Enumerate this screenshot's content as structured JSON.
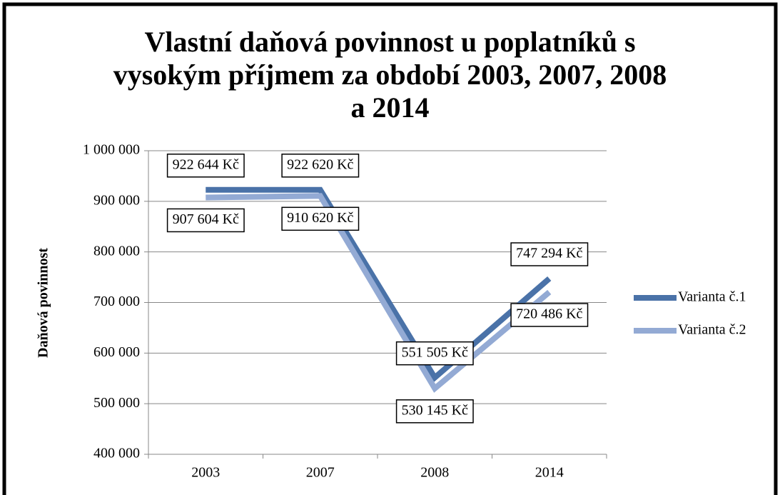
{
  "chart_data": {
    "type": "line",
    "title": "Vlastní daňová povinnost u poplatníků s vysokým příjmem za období 2003, 2007, 2008 a 2014",
    "ylabel": "Daňová povinnost",
    "categories": [
      "2003",
      "2007",
      "2008",
      "2014"
    ],
    "series": [
      {
        "name": "Varianta č.1",
        "color": "#4a72a8",
        "values": [
          922644,
          922620,
          551505,
          747294
        ],
        "value_labels": [
          "922 644 Kč",
          "922 620 Kč",
          "551 505 Kč",
          "747 294 Kč"
        ]
      },
      {
        "name": "Varianta č.2",
        "color": "#93aad4",
        "values": [
          907604,
          910620,
          530145,
          720486
        ],
        "value_labels": [
          "907 604 Kč",
          "910 620 Kč",
          "530 145 Kč",
          "720 486 Kč"
        ]
      }
    ],
    "ylim": [
      400000,
      1000000
    ],
    "yticks": [
      {
        "value": 400000,
        "label": "400 000"
      },
      {
        "value": 500000,
        "label": "500 000"
      },
      {
        "value": 600000,
        "label": "600 000"
      },
      {
        "value": 700000,
        "label": "700 000"
      },
      {
        "value": 800000,
        "label": "800 000"
      },
      {
        "value": 900000,
        "label": "900 000"
      },
      {
        "value": 1000000,
        "label": "1 000 000"
      }
    ],
    "grid": true,
    "legend": "right"
  }
}
